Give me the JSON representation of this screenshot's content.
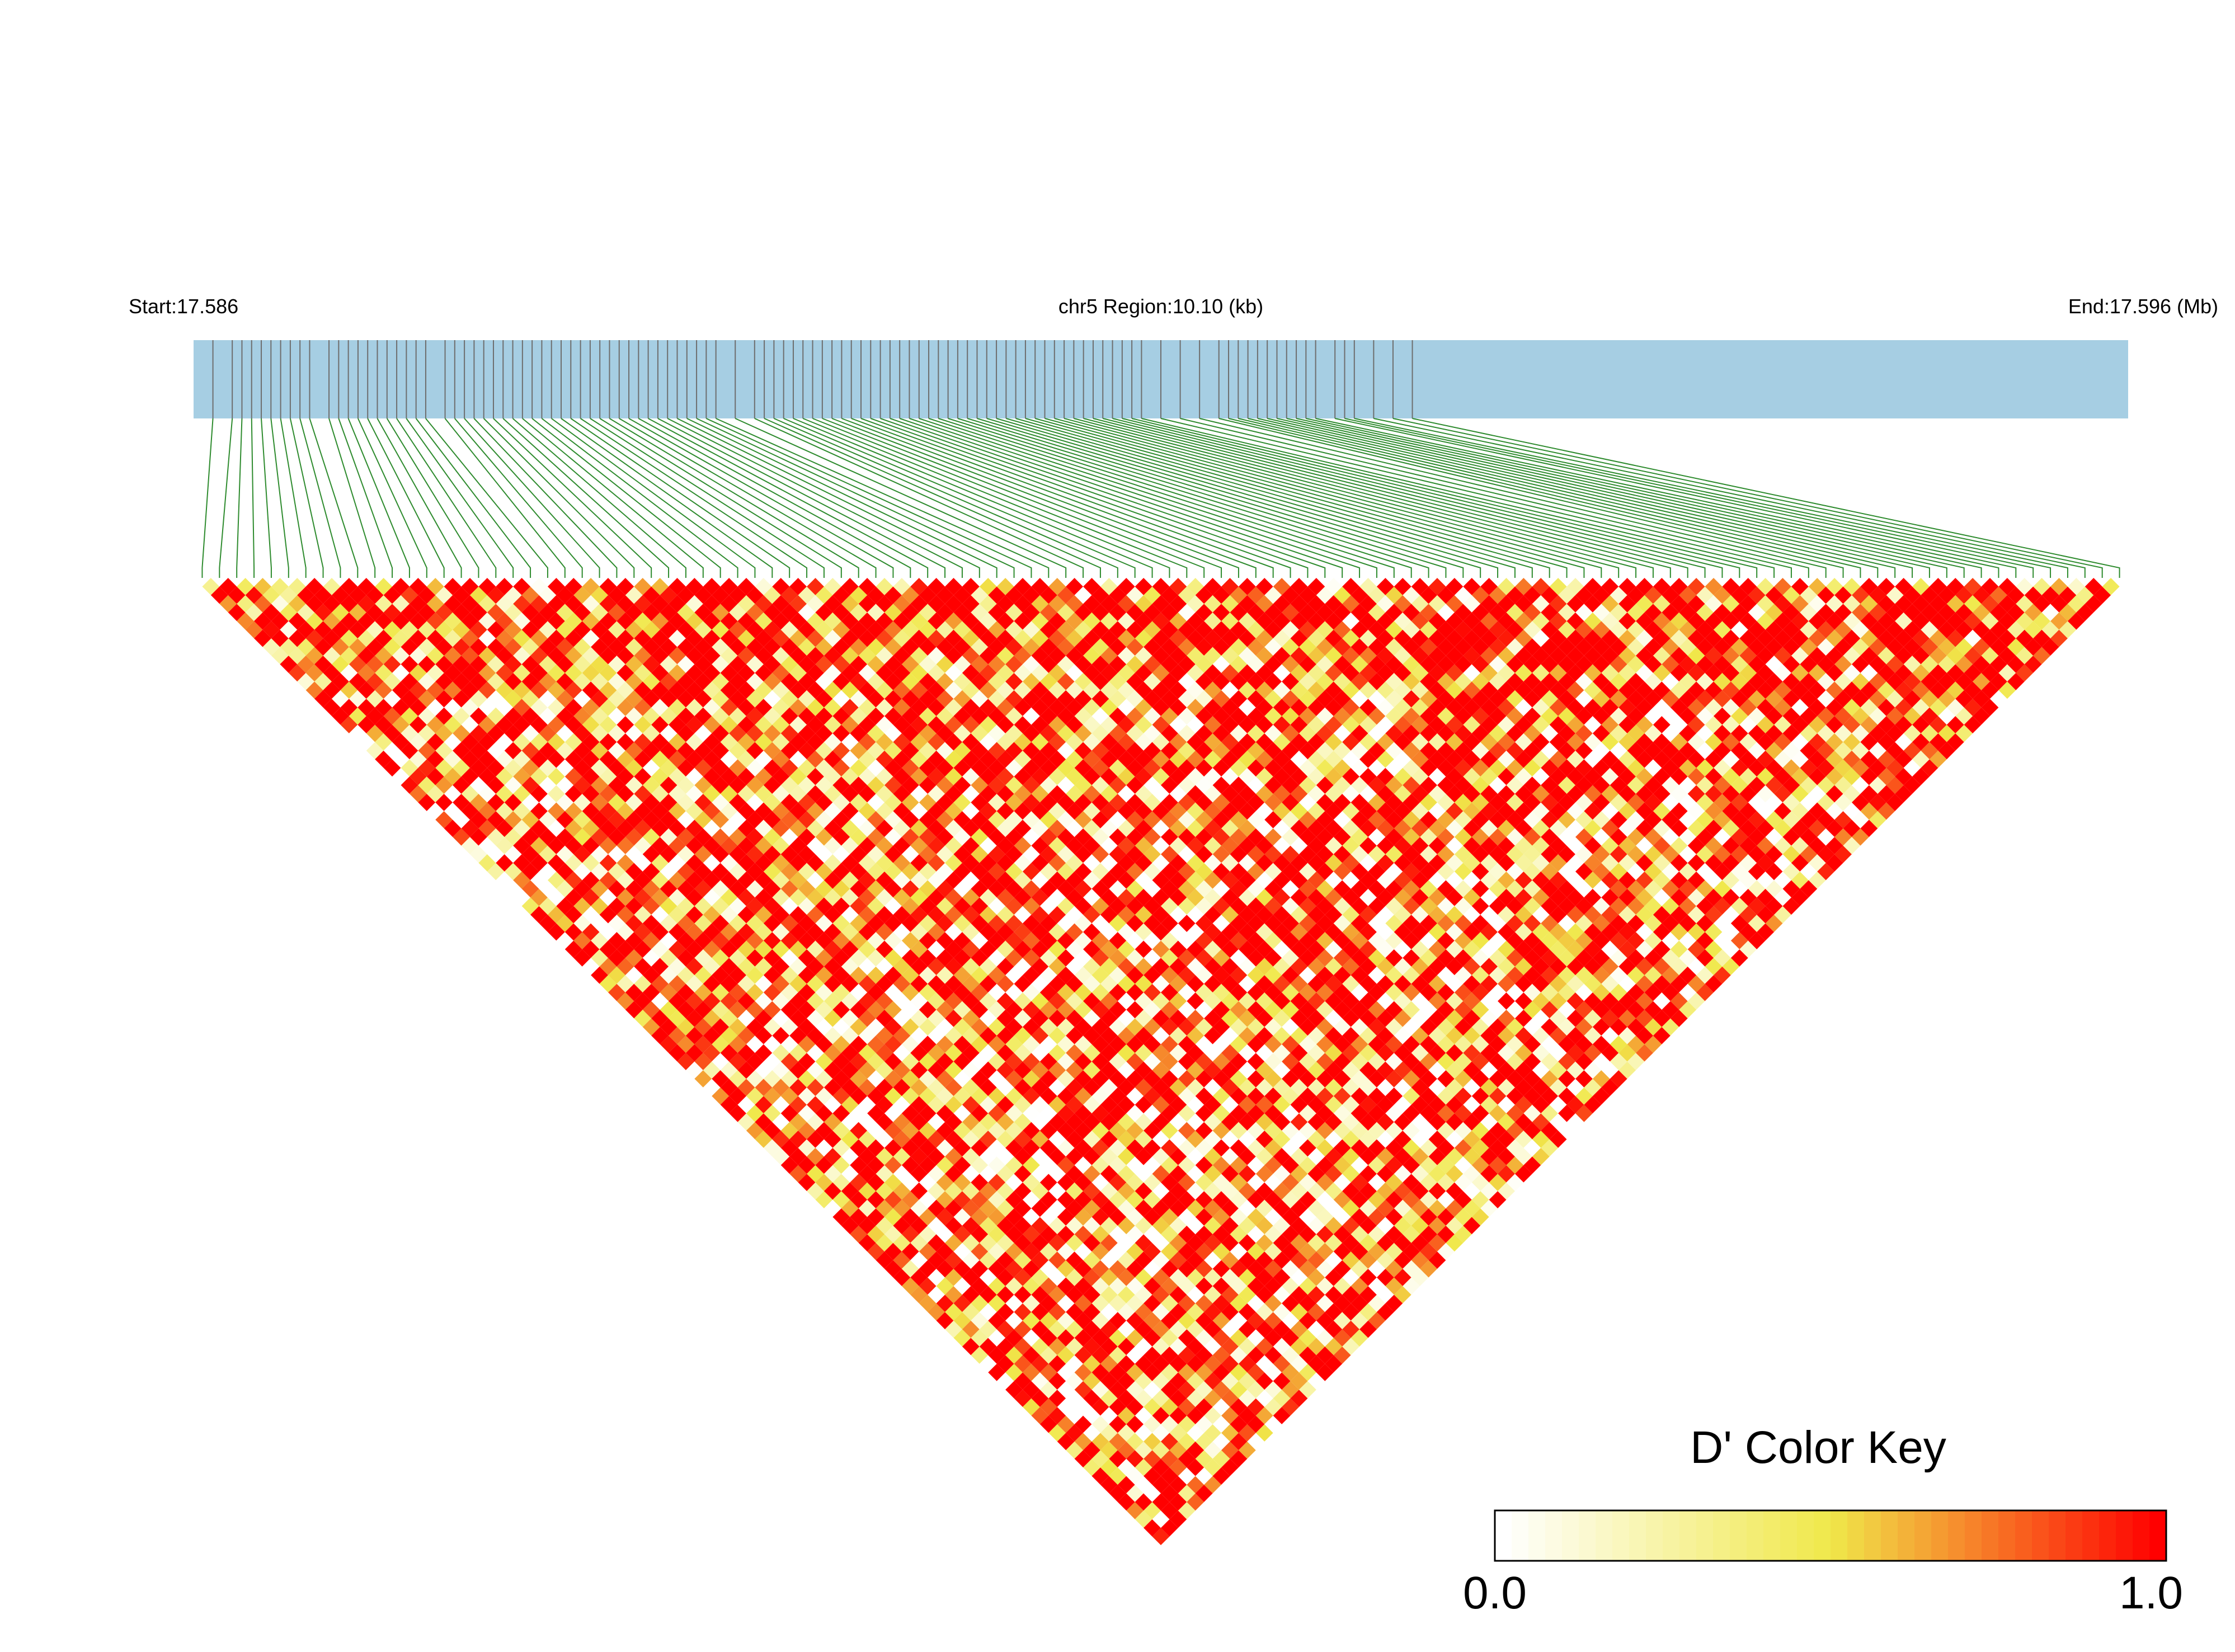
{
  "header": {
    "start_label": "Start:17.586",
    "region_label": "chr5 Region:10.10 (kb)",
    "end_label": "End:17.596 (Mb)"
  },
  "colors": {
    "track": "#a6cee3",
    "snp_line": "#6e6e6e",
    "connector": "#2e8b2e",
    "key_low": "#ffffff",
    "key_mid": "#f0e84a",
    "key_high": "#ff0000"
  },
  "chart_data": {
    "type": "heatmap",
    "metric": "D'",
    "chromosome": "chr5",
    "region_start_mb": 17.586,
    "region_end_mb": 17.596,
    "region_size_kb": 10.1,
    "snp_count": 112,
    "snp_positions_mb": [
      17.5861,
      17.5862,
      17.58625,
      17.5863,
      17.58635,
      17.5864,
      17.58645,
      17.5865,
      17.58655,
      17.5866,
      17.5867,
      17.58675,
      17.5868,
      17.58685,
      17.5869,
      17.58695,
      17.587,
      17.58705,
      17.5871,
      17.58715,
      17.5872,
      17.5873,
      17.58735,
      17.5874,
      17.58745,
      17.5875,
      17.58755,
      17.5876,
      17.58765,
      17.5877,
      17.58775,
      17.5878,
      17.58785,
      17.5879,
      17.58795,
      17.588,
      17.58805,
      17.5881,
      17.58815,
      17.5882,
      17.58825,
      17.5883,
      17.58835,
      17.5884,
      17.58845,
      17.5885,
      17.58855,
      17.5886,
      17.58865,
      17.5887,
      17.5888,
      17.5889,
      17.58895,
      17.589,
      17.58905,
      17.5891,
      17.58915,
      17.5892,
      17.58925,
      17.5893,
      17.58935,
      17.5894,
      17.58945,
      17.5895,
      17.58955,
      17.5896,
      17.58965,
      17.5897,
      17.58975,
      17.5898,
      17.58985,
      17.5899,
      17.58995,
      17.59,
      17.59005,
      17.5901,
      17.59015,
      17.5902,
      17.59025,
      17.5903,
      17.59035,
      17.5904,
      17.59045,
      17.5905,
      17.59055,
      17.5906,
      17.59065,
      17.5907,
      17.59075,
      17.5908,
      17.59085,
      17.5909,
      17.591,
      17.5911,
      17.5912,
      17.5913,
      17.59135,
      17.5914,
      17.59145,
      17.5915,
      17.59155,
      17.5916,
      17.59165,
      17.5917,
      17.59175,
      17.5918,
      17.5919,
      17.59195,
      17.592,
      17.5921,
      17.5922,
      17.5923
    ],
    "color_key": {
      "title": "D' Color Key",
      "min_label": "0.0",
      "max_label": "1.0",
      "range": [
        0.0,
        1.0
      ],
      "colors": [
        "#ffffff",
        "#f0e84a",
        "#ff0000"
      ]
    }
  }
}
